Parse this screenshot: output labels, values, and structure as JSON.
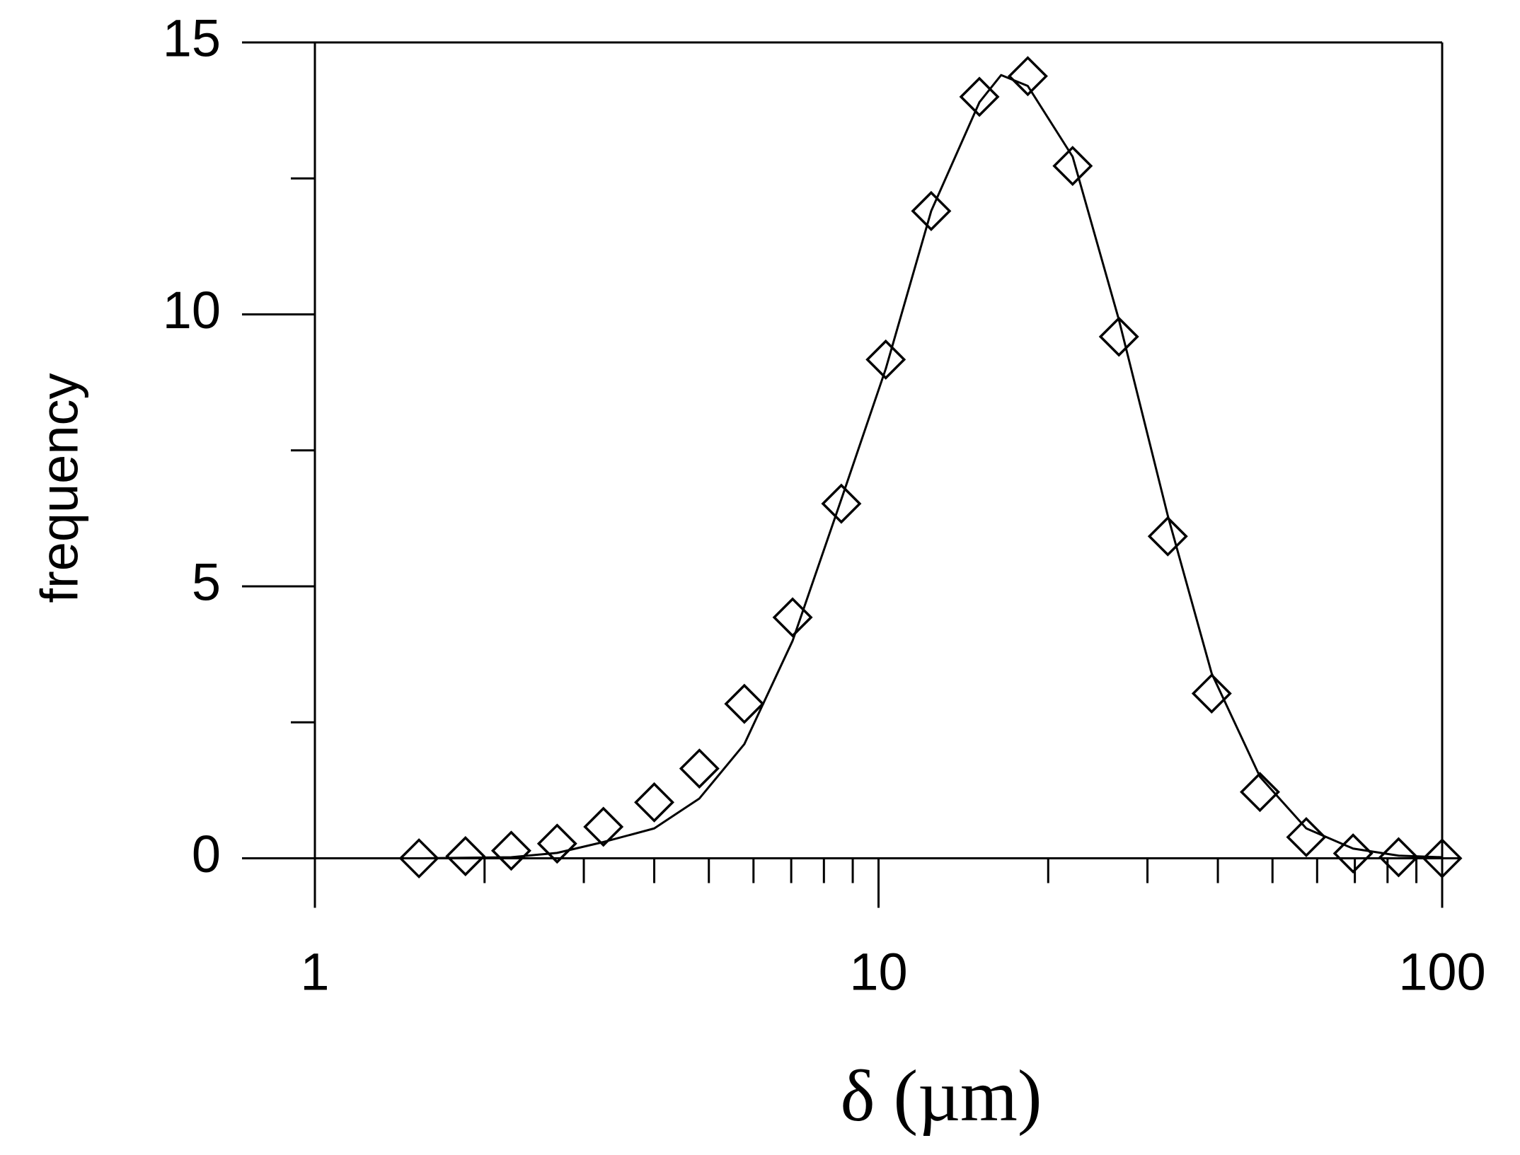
{
  "chart_data": {
    "type": "scatter",
    "xlabel": "δ (µm)",
    "ylabel": "frequency",
    "xscale": "log",
    "xlim": [
      1,
      100
    ],
    "xticks": [
      1,
      10,
      100
    ],
    "xminorticks": [
      2,
      3,
      4,
      5,
      6,
      7,
      8,
      9,
      20,
      30,
      40,
      50,
      60,
      70,
      80,
      90
    ],
    "ylim": [
      -0.89,
      15
    ],
    "yticks": [
      0,
      5,
      10,
      15
    ],
    "yminorticks": [
      2.5,
      7.5,
      12.5
    ],
    "series": [
      {
        "marker": "diamond",
        "color": "#000000",
        "x": [
          1.53,
          1.85,
          2.23,
          2.69,
          3.25,
          4.0,
          4.81,
          5.78,
          7.04,
          8.59,
          10.3,
          12.4,
          15.1,
          18.4,
          22.1,
          26.7,
          32.6,
          39.0,
          47.5,
          57.4,
          69.5,
          83.7,
          100
        ],
        "values": [
          0,
          0.04,
          0.14,
          0.27,
          0.58,
          1.03,
          1.65,
          2.84,
          4.43,
          6.52,
          9.17,
          11.9,
          14.0,
          14.38,
          12.73,
          9.59,
          5.92,
          3.03,
          1.22,
          0.39,
          0.09,
          0.02,
          0
        ]
      },
      {
        "marker": "line",
        "color": "#000000",
        "x": [
          1.53,
          2.23,
          2.69,
          3.25,
          4.0,
          4.81,
          5.78,
          7.04,
          8.59,
          10.3,
          12.4,
          15.1,
          16.5,
          18.4,
          22.1,
          26.7,
          32.6,
          39.0,
          47.5,
          57.4,
          69.5,
          83.7,
          100
        ],
        "values": [
          0,
          0.02,
          0.1,
          0.3,
          0.55,
          1.1,
          2.1,
          4.0,
          6.6,
          9.0,
          11.9,
          13.9,
          14.4,
          14.2,
          12.9,
          9.9,
          6.3,
          3.4,
          1.5,
          0.55,
          0.18,
          0.05,
          0.02
        ]
      }
    ]
  }
}
